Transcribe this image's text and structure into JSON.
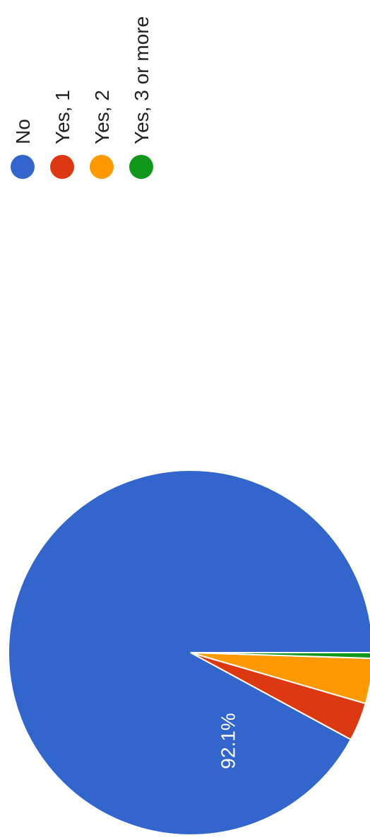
{
  "chart_data": {
    "type": "pie",
    "series": [
      {
        "name": "No",
        "value": 92.1,
        "color": "#3366cc"
      },
      {
        "name": "Yes, 1",
        "value": 3.4,
        "color": "#dc3912"
      },
      {
        "name": "Yes, 2",
        "value": 4.0,
        "color": "#ff9900"
      },
      {
        "name": "Yes, 3 or more",
        "value": 0.5,
        "color": "#109618"
      }
    ],
    "data_labels": [
      "92.1%"
    ],
    "legend_position": "right",
    "orientation": "rotated-90-ccw"
  }
}
